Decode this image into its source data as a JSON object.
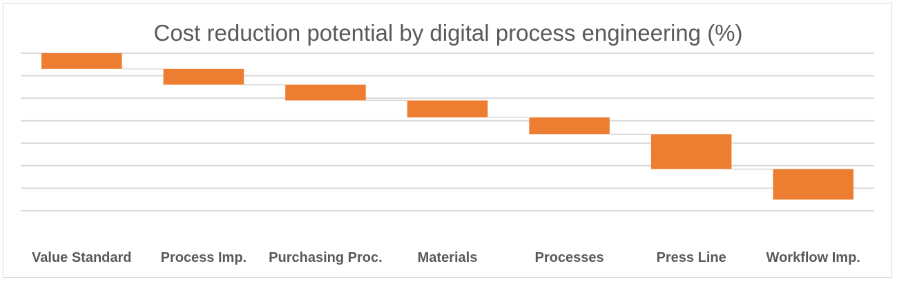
{
  "chart_data": {
    "type": "bar",
    "subtype": "waterfall",
    "title": "Cost reduction potential by digital process engineering (%)",
    "categories": [
      "Value Standard",
      "Process Imp.",
      "Purchasing Proc.",
      "Materials",
      "Processes",
      "Press Line",
      "Workflow Imp."
    ],
    "series": [
      {
        "values": [
          -0.7,
          -0.7,
          -0.7,
          -0.75,
          -0.75,
          -1.55,
          -1.35
        ]
      }
    ],
    "start": 7.0,
    "ylim": [
      0,
      7
    ],
    "gridlines": true,
    "connector_lines": true,
    "axis_labels_visible": false,
    "bar_color": "#ED7D31",
    "gridline_color": "#D9D9D9",
    "connector_color": "#D9D9D9",
    "text_color": "#595959"
  }
}
